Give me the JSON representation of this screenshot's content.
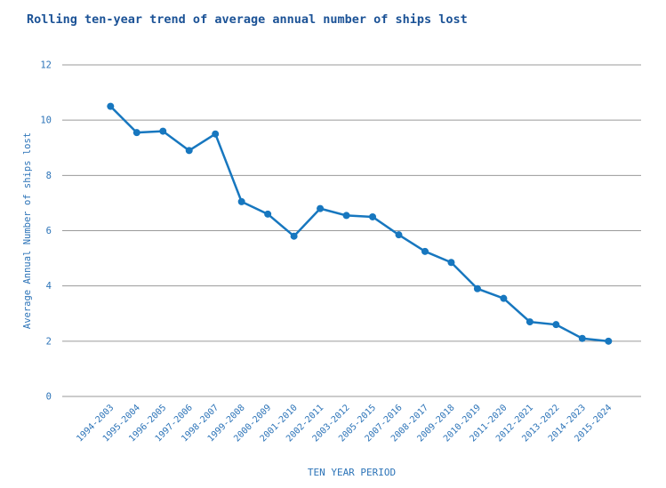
{
  "title": "Rolling ten-year trend of average annual number of ships lost",
  "colors": {
    "title": "#1b5296",
    "line": "#1777bf",
    "marker": "#1777bf",
    "axis_text": "#2d74b8",
    "grid": "#9a9a9a",
    "background": "#ffffff"
  },
  "chart_data": {
    "type": "line",
    "title": "Rolling ten-year trend of average annual number of ships lost",
    "xlabel": "TEN YEAR PERIOD",
    "ylabel": "Average Annual Number of ships lost",
    "categories": [
      "1994-2003",
      "1995-2004",
      "1996-2005",
      "1997-2006",
      "1998-2007",
      "1999-2008",
      "2000-2009",
      "2001-2010",
      "2002-2011",
      "2003-2012",
      "2005-2015",
      "2007-2016",
      "2008-2017",
      "2009-2018",
      "2010-2019",
      "2011-2020",
      "2012-2021",
      "2013-2022",
      "2014-2023",
      "2015-2024"
    ],
    "values": [
      10.5,
      9.55,
      9.6,
      8.9,
      9.5,
      7.05,
      6.6,
      5.8,
      6.8,
      6.55,
      6.5,
      5.85,
      5.25,
      4.85,
      3.9,
      3.55,
      2.7,
      2.6,
      2.1,
      2.0
    ],
    "ylim": [
      0,
      12
    ],
    "yticks": [
      0,
      2,
      4,
      6,
      8,
      10,
      12
    ],
    "grid": "horizontal",
    "legend": "none",
    "marker": "circle",
    "x_tick_rotation_deg": 45
  }
}
